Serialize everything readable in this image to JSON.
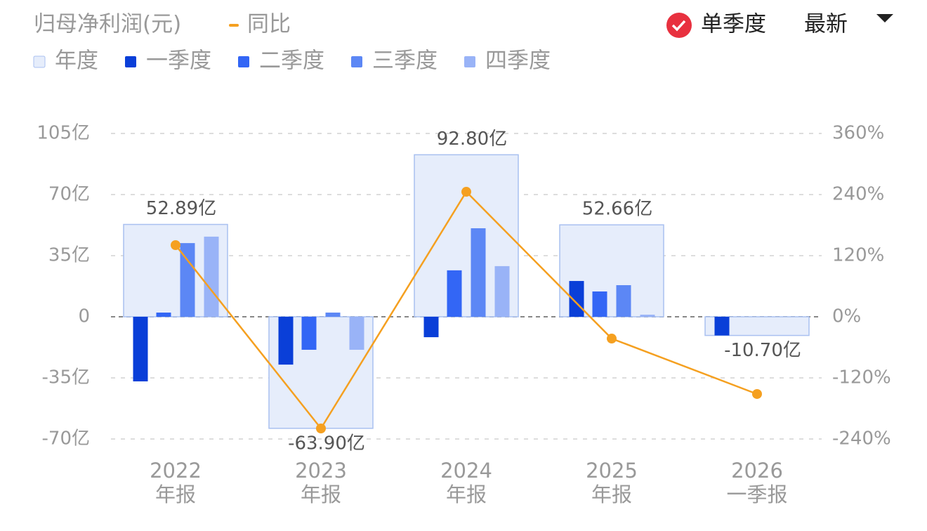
{
  "chart_data": {
    "type": "bar",
    "title": "归母净利润(元)",
    "categories": [
      [
        "2022",
        "年报"
      ],
      [
        "2023",
        "年报"
      ],
      [
        "2024",
        "年报"
      ],
      [
        "2025",
        "年报"
      ],
      [
        "2026",
        "一季报"
      ]
    ],
    "series": [
      {
        "name": "年度",
        "color": "#e6edfb",
        "values": [
          52.89,
          -63.9,
          92.8,
          52.66,
          -10.7
        ],
        "value_labels": [
          "52.89亿",
          "-63.90亿",
          "92.80亿",
          "52.66亿",
          "-10.70亿"
        ]
      },
      {
        "name": "一季度",
        "color": "#0a3fd8",
        "values": [
          -37.0,
          -27.4,
          -11.7,
          20.5,
          -10.7
        ]
      },
      {
        "name": "二季度",
        "color": "#3366f5",
        "values": [
          2.4,
          -18.9,
          26.6,
          14.5,
          null
        ]
      },
      {
        "name": "三季度",
        "color": "#5c87f5",
        "values": [
          42.2,
          2.4,
          50.7,
          18.1,
          null
        ]
      },
      {
        "name": "四季度",
        "color": "#99b3f7",
        "values": [
          45.9,
          -18.9,
          29.0,
          1.2,
          null
        ]
      },
      {
        "name": "同比",
        "type": "line",
        "axis": "y2",
        "color": "#f5a020",
        "values": [
          140.7,
          -219.3,
          245.5,
          -42.8,
          -151.7
        ]
      }
    ],
    "ylim": [
      -70,
      105
    ],
    "yticks": [
      {
        "value": -70,
        "label": "-70亿"
      },
      {
        "value": -35,
        "label": "-35亿"
      },
      0,
      {
        "value": 35,
        "label": "35亿"
      },
      {
        "value": 70,
        "label": "70亿"
      },
      {
        "value": 105,
        "label": "105亿"
      }
    ],
    "y2lim": [
      -240,
      360
    ],
    "y2ticks": [
      {
        "value": -240,
        "label": "-240%"
      },
      {
        "value": -120,
        "label": "-120%"
      },
      {
        "value": 0,
        "label": "0%"
      },
      {
        "value": 120,
        "label": "120%"
      },
      {
        "value": 240,
        "label": "240%"
      },
      {
        "value": 360,
        "label": "360%"
      }
    ],
    "grid": true,
    "controls": {
      "mode": "单季度",
      "sort": "最新"
    }
  }
}
